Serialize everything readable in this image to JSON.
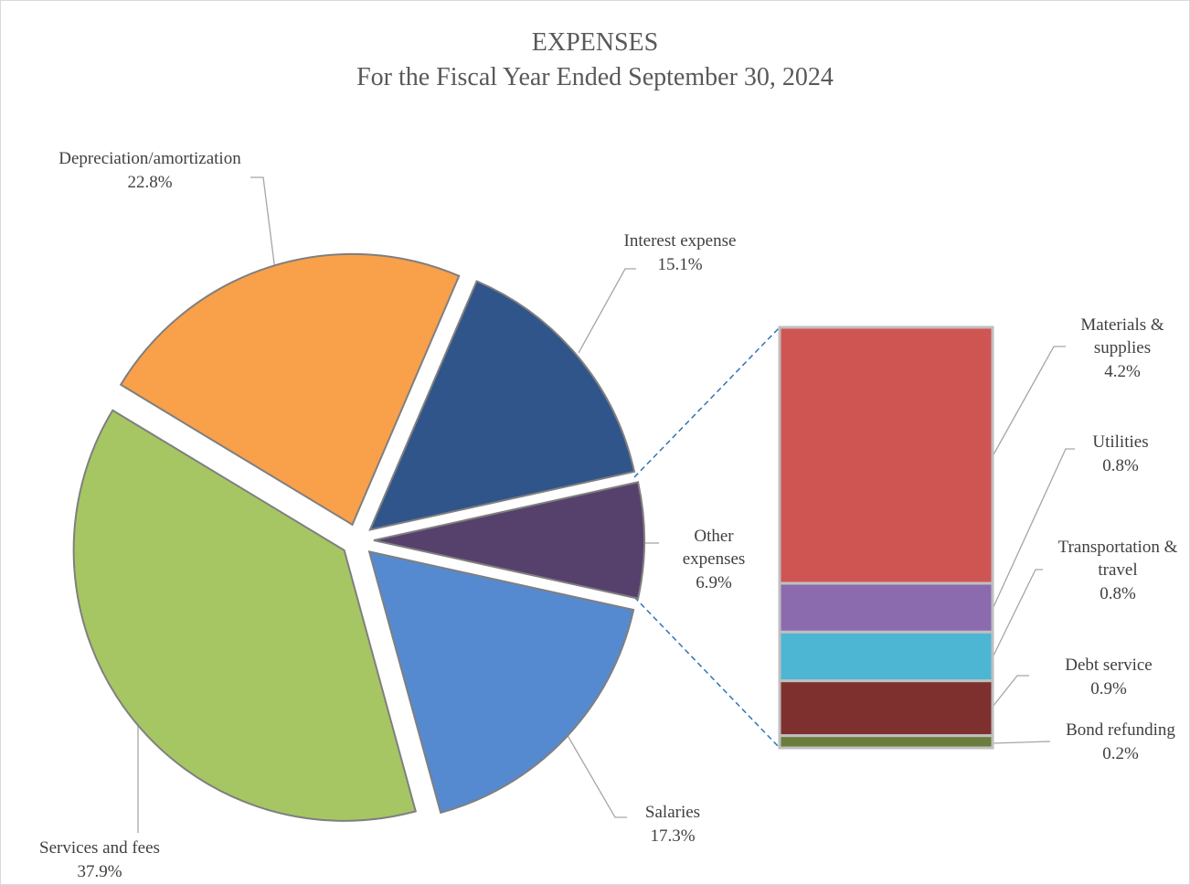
{
  "chart_data": {
    "type": "pie",
    "title": "EXPENSES",
    "subtitle": "For the Fiscal Year Ended September 30, 2024",
    "categories": [
      "Depreciation/amortization",
      "Interest expense",
      "Other expenses",
      "Salaries",
      "Services and fees"
    ],
    "values": [
      22.8,
      15.1,
      6.9,
      17.3,
      37.9
    ],
    "value_labels": [
      "22.8%",
      "15.1%",
      "6.9%",
      "17.3%",
      "37.9%"
    ],
    "colors": [
      "#f9a04b",
      "#30558a",
      "#56416d",
      "#568ad0",
      "#a6c663"
    ],
    "breakdown": {
      "categories": [
        "Materials & supplies",
        "Utilities",
        "Transportation & travel",
        "Debt service",
        "Bond refunding"
      ],
      "values": [
        4.2,
        0.8,
        0.8,
        0.9,
        0.2
      ],
      "value_labels": [
        "4.2%",
        "0.8%",
        "0.8%",
        "0.9%",
        "0.2%"
      ],
      "colors": [
        "#cf5553",
        "#8b6bae",
        "#4db6d2",
        "#7e302f",
        "#6a7d3c"
      ]
    }
  }
}
